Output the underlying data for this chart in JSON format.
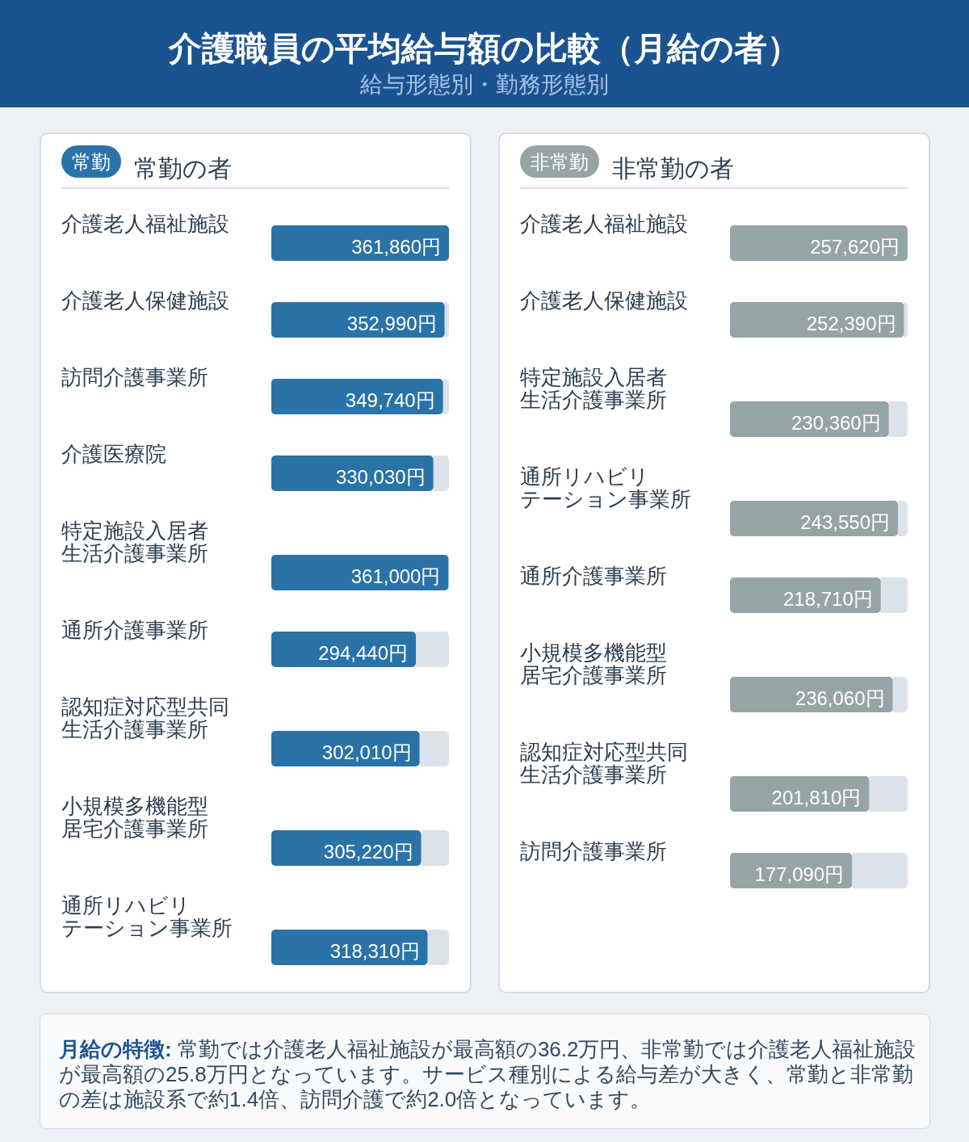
{
  "chart_data": [
    {
      "type": "other",
      "title": "介護職員の平均給与額の比較（月給の者）",
      "subtitle": "給与形態別・勤務形態別"
    },
    {
      "type": "bar",
      "orientation": "horizontal",
      "title": "常勤の者",
      "annotations": [
        "常勤"
      ],
      "color": "#2a73a8",
      "categories": [
        "介護老人福祉施設",
        "介護老人保健施設",
        "訪問介護事業所",
        "介護医療院",
        "特定施設入居者生活介護事業所",
        "通所介護事業所",
        "認知症対応型共同生活介護事業所",
        "小規模多機能型居宅介護事業所",
        "通所リハビリテーション事業所"
      ],
      "values": [
        361860,
        352990,
        349740,
        330030,
        361000,
        294440,
        302010,
        305220,
        318310
      ],
      "value_labels": [
        "361,860円",
        "352,990円",
        "349,740円",
        "330,030円",
        "361,000円",
        "294,440円",
        "302,010円",
        "305,220円",
        "318,310円"
      ]
    },
    {
      "type": "bar",
      "orientation": "horizontal",
      "title": "非常勤の者",
      "annotations": [
        "非常勤"
      ],
      "color": "#95a5a6",
      "categories": [
        "介護老人福祉施設",
        "介護老人保健施設",
        "特定施設入居者生活介護事業所",
        "通所リハビリテーション事業所",
        "通所介護事業所",
        "小規模多機能型居宅介護事業所",
        "認知症対応型共同生活介護事業所",
        "訪問介護事業所"
      ],
      "values": [
        257620,
        252390,
        230360,
        243550,
        218710,
        236060,
        201810,
        177090
      ],
      "value_labels": [
        "257,620円",
        "252,390円",
        "230,360円",
        "243,550円",
        "218,710円",
        "236,060円",
        "201,810円",
        "177,090円"
      ]
    },
    {
      "type": "other",
      "annotations": [
        "月給の特徴: 常勤では介護老人福祉施設が最高額の36.2万円、非常勤では介護老人福祉施設が最高額の25.8万円となっています。サービス種別による給与差が大きく、常勤と非常勤の差は施設系で約1.4倍、訪問介護で約2.0倍となっています。"
      ]
    }
  ]
}
